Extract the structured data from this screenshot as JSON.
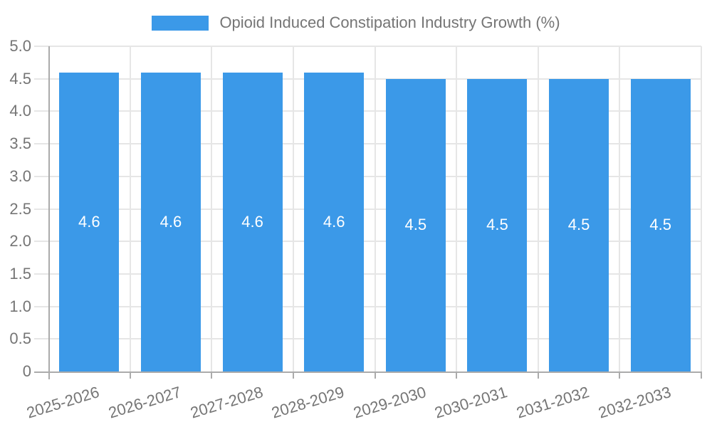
{
  "chart_data": {
    "type": "bar",
    "title": "Opioid Induced Constipation Industry Growth (%)",
    "categories": [
      "2025-2026",
      "2026-2027",
      "2027-2028",
      "2028-2029",
      "2029-2030",
      "2030-2031",
      "2031-2032",
      "2032-2033"
    ],
    "values": [
      4.6,
      4.6,
      4.6,
      4.6,
      4.5,
      4.5,
      4.5,
      4.5
    ],
    "bar_value_labels": [
      "4.6",
      "4.6",
      "4.6",
      "4.6",
      "4.5",
      "4.5",
      "4.5",
      "4.5"
    ],
    "xlabel": "",
    "ylabel": "",
    "ylim": [
      0,
      5
    ],
    "ytick_labels": [
      "0",
      "0.5",
      "1.0",
      "1.5",
      "2.0",
      "2.5",
      "3.0",
      "3.5",
      "4.0",
      "4.5",
      "5.0"
    ],
    "grid": true,
    "legend_position": "top",
    "colors": {
      "bar": "#3B99E8",
      "grid": "#E6E6E6",
      "axis": "#ABABAB",
      "tick_label": "#757575",
      "value_label": "#FFFFFF"
    }
  }
}
